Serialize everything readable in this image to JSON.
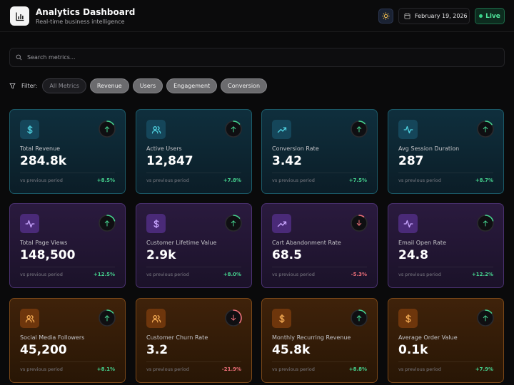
{
  "header": {
    "title": "Analytics Dashboard",
    "subtitle": "Real-time business intelligence",
    "date": "February 19, 2026",
    "live_label": "Live"
  },
  "search": {
    "placeholder": "Search metrics..."
  },
  "filter": {
    "label": "Filter:",
    "chips": [
      "All Metrics",
      "Revenue",
      "Users",
      "Engagement",
      "Conversion"
    ],
    "active_chip": "All Metrics"
  },
  "colors": {
    "up": "#46d38f",
    "down": "#f0707a",
    "teal_icon": "#4fd1e0",
    "purple_icon": "#c9a6ff",
    "amber_icon": "#f6ad55"
  },
  "cards": [
    {
      "label": "Total Revenue",
      "value": "284.8k",
      "foot": "vs previous period",
      "change": "+8.5%",
      "trend": "up",
      "icon": "dollar-icon",
      "theme": "teal",
      "progress": 0.15
    },
    {
      "label": "Active Users",
      "value": "12,847",
      "foot": "vs previous period",
      "change": "+7.8%",
      "trend": "up",
      "icon": "users-icon",
      "theme": "teal",
      "progress": 0.14
    },
    {
      "label": "Conversion Rate",
      "value": "3.42",
      "foot": "vs previous period",
      "change": "+7.5%",
      "trend": "up",
      "icon": "trending-up-icon",
      "theme": "teal",
      "progress": 0.13
    },
    {
      "label": "Avg Session Duration",
      "value": "287",
      "foot": "vs previous period",
      "change": "+8.7%",
      "trend": "up",
      "icon": "activity-icon",
      "theme": "teal",
      "progress": 0.15
    },
    {
      "label": "Total Page Views",
      "value": "148,500",
      "foot": "vs previous period",
      "change": "+12.5%",
      "trend": "up",
      "icon": "activity-icon",
      "theme": "purple",
      "progress": 0.2
    },
    {
      "label": "Customer Lifetime Value",
      "value": "2.9k",
      "foot": "vs previous period",
      "change": "+8.0%",
      "trend": "up",
      "icon": "dollar-icon",
      "theme": "purple",
      "progress": 0.14
    },
    {
      "label": "Cart Abandonment Rate",
      "value": "68.5",
      "foot": "vs previous period",
      "change": "-5.3%",
      "trend": "down",
      "icon": "trending-up-icon",
      "theme": "purple",
      "progress": 0.1
    },
    {
      "label": "Email Open Rate",
      "value": "24.8",
      "foot": "vs previous period",
      "change": "+12.2%",
      "trend": "up",
      "icon": "activity-icon",
      "theme": "purple",
      "progress": 0.2
    },
    {
      "label": "Social Media Followers",
      "value": "45,200",
      "foot": "vs previous period",
      "change": "+8.1%",
      "trend": "up",
      "icon": "users-icon",
      "theme": "amber",
      "progress": 0.14
    },
    {
      "label": "Customer Churn Rate",
      "value": "3.2",
      "foot": "vs previous period",
      "change": "-21.9%",
      "trend": "down",
      "icon": "users-icon",
      "theme": "amber",
      "progress": 0.35
    },
    {
      "label": "Monthly Recurring Revenue",
      "value": "45.8k",
      "foot": "vs previous period",
      "change": "+8.8%",
      "trend": "up",
      "icon": "dollar-icon",
      "theme": "amber",
      "progress": 0.15
    },
    {
      "label": "Average Order Value",
      "value": "0.1k",
      "foot": "vs previous period",
      "change": "+7.9%",
      "trend": "up",
      "icon": "dollar-icon",
      "theme": "amber",
      "progress": 0.14
    }
  ]
}
